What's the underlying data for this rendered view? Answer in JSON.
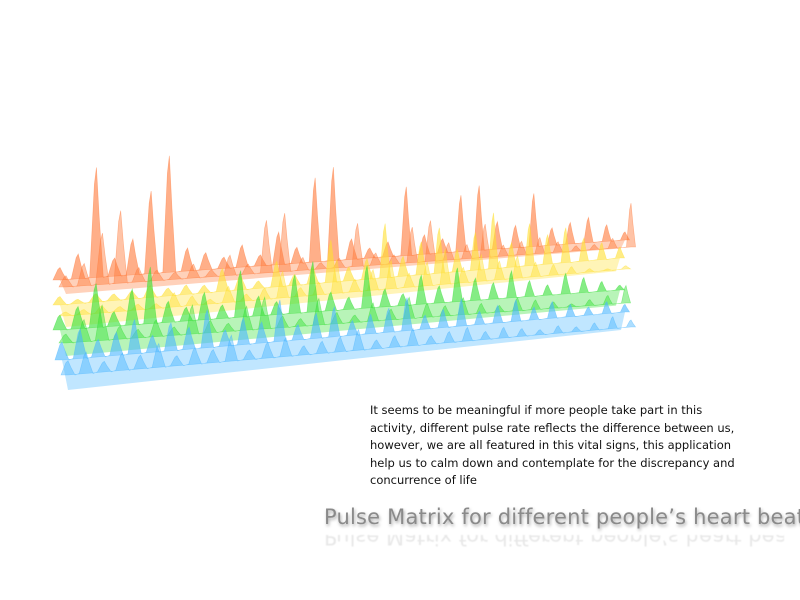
{
  "slide": {
    "title": "Pulse Matrix for different people’s heart beat",
    "description": "It seems to be meaningful if more people take part in this activity, different pulse rate reflects the difference between us, however, we are all featured in this vital signs, this application help us to calm down and contemplate for the discrepancy and concurrence of life"
  },
  "visual": {
    "layers": [
      {
        "color": "#ff7a3a",
        "peaks": [
          0.1,
          0.2,
          0.9,
          0.15,
          0.3,
          0.7,
          1.0,
          0.2,
          0.15,
          0.1,
          0.2,
          0.1,
          0.3,
          0.15,
          0.8,
          0.9,
          0.2,
          0.1,
          0.15,
          0.7,
          0.2,
          0.15,
          0.6,
          0.7,
          0.3,
          0.25,
          0.6,
          0.2,
          0.25,
          0.3,
          0.2,
          0.1
        ]
      },
      {
        "color": "#ffe032",
        "peaks": [
          0.1,
          0.05,
          0.1,
          0.08,
          0.1,
          0.15,
          0.1,
          0.12,
          0.1,
          0.3,
          0.2,
          0.1,
          0.35,
          0.15,
          0.25,
          0.6,
          0.2,
          0.3,
          0.8,
          0.3,
          0.5,
          0.7,
          0.35,
          0.6,
          0.9,
          0.4,
          0.7,
          0.5,
          0.6,
          0.4,
          0.3,
          0.2
        ]
      },
      {
        "color": "#33e033",
        "peaks": [
          0.2,
          0.3,
          0.6,
          0.2,
          0.5,
          0.8,
          0.3,
          0.2,
          0.4,
          0.2,
          0.7,
          0.3,
          0.2,
          0.6,
          0.8,
          0.3,
          0.2,
          0.7,
          0.3,
          0.2,
          0.5,
          0.3,
          0.6,
          0.4,
          0.3,
          0.5,
          0.3,
          0.2,
          0.4,
          0.3,
          0.2,
          0.1
        ]
      },
      {
        "color": "#4ab6ff",
        "peaks": [
          0.3,
          0.5,
          0.3,
          0.4,
          0.6,
          0.3,
          0.5,
          0.4,
          0.7,
          0.3,
          0.5,
          0.4,
          0.8,
          0.3,
          0.5,
          0.6,
          0.3,
          0.4,
          0.5,
          0.7,
          0.3,
          0.4,
          0.6,
          0.3,
          0.4,
          0.5,
          0.3,
          0.4,
          0.3,
          0.2,
          0.3,
          0.2
        ]
      }
    ]
  }
}
